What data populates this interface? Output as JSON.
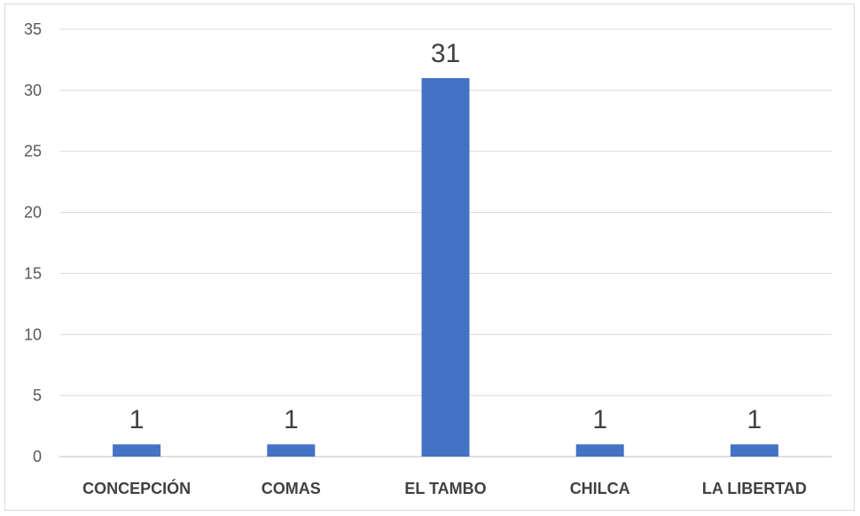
{
  "chart_data": {
    "type": "bar",
    "categories": [
      "CONCEPCIÓN",
      "COMAS",
      "EL TAMBO",
      "CHILCA",
      "LA LIBERTAD"
    ],
    "values": [
      1,
      1,
      31,
      1,
      1
    ],
    "data_labels": [
      "1",
      "1",
      "31",
      "1",
      "1"
    ],
    "yticks": [
      "0",
      "5",
      "10",
      "15",
      "20",
      "25",
      "30",
      "35"
    ],
    "ylim": [
      0,
      35
    ],
    "grid": true,
    "legend": "none",
    "bar_color": "#4472c4",
    "title": "",
    "xlabel": "",
    "ylabel": ""
  }
}
